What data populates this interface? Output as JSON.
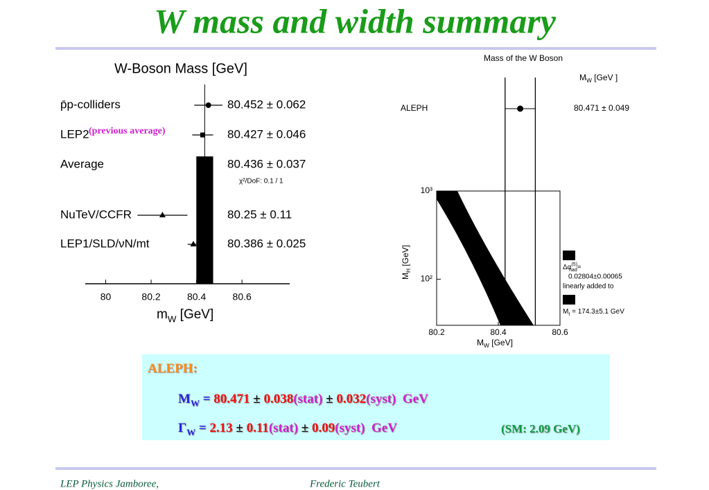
{
  "title": "W mass  and width summary",
  "chart_data": [
    {
      "type": "errorbar",
      "title": "W-Boson Mass  [GeV]",
      "xlabel": {
        "symbol": "m",
        "sub": "W",
        "unit": " [GeV]"
      },
      "categories": [
        "p̄p-colliders",
        "LEP2",
        "Average",
        "NuTeV/CCFR",
        "LEP1/SLD/νN/mt"
      ],
      "values": [
        80.452,
        80.427,
        80.436,
        80.25,
        80.386
      ],
      "errors": [
        0.062,
        0.046,
        0.037,
        0.11,
        0.025
      ],
      "value_labels": [
        "80.452 ± 0.062",
        "80.427 ± 0.046",
        "80.436 ± 0.037",
        "80.25 ± 0.11",
        "80.386 ± 0.025"
      ],
      "markers": [
        "circle",
        "square",
        "band",
        "triangle",
        "triangle"
      ],
      "annotations": [
        "(previous average)",
        "χ²/DoF: 0.1 / 1"
      ],
      "xlim": [
        79.91,
        80.81
      ],
      "xticks": [
        80,
        80.2,
        80.4,
        80.6
      ],
      "color": "#000000"
    },
    {
      "type": "errorbar",
      "title": "Mass of the W Boson",
      "header": {
        "symbol": "M",
        "sub": "W",
        "unit": "  [GeV ]"
      },
      "categories": [
        "ALEPH"
      ],
      "values": [
        80.471
      ],
      "errors": [
        0.049
      ],
      "value_labels": [
        "80.471  ± 0.049"
      ],
      "xlabel": {
        "symbol": "M",
        "sub": "W",
        "unit": "  [GeV]"
      },
      "ylabel": {
        "symbol": "M",
        "sub": "H",
        "unit": "  [GeV]"
      },
      "xlim": [
        80.2,
        80.6
      ],
      "xticks": [
        80.2,
        80.4,
        80.6
      ],
      "ylim": [
        30,
        1000
      ],
      "log_y": true,
      "yticks": [
        {
          "value": 1000,
          "label": "10³"
        },
        {
          "value": 100,
          "label": "10²"
        }
      ],
      "legend": [
        {
          "symbol": "Δα",
          "sup": "(5)",
          "sub": "had",
          "rest": "=",
          "lines": [
            "0.02804±0.00065",
            "linearly added to"
          ]
        },
        {
          "symbol": "M",
          "sub": "t",
          "rest": " = 174.3±5.1 GeV",
          "lines": []
        }
      ],
      "color": "#000000"
    }
  ],
  "box": {
    "heading": "ALEPH:",
    "lines": [
      [
        {
          "text": "M",
          "color": "#2222dd"
        },
        {
          "text": "W",
          "color": "#2222dd",
          "sub": true
        },
        {
          "text": " = ",
          "color": "#2222dd"
        },
        {
          "text": "80.471",
          "color": "#ee1111"
        },
        {
          "text": " ± ",
          "color": "#111111"
        },
        {
          "text": "0.038",
          "color": "#ee1111"
        },
        {
          "text": "(stat)",
          "color": "#cc22cc"
        },
        {
          "text": " ± ",
          "color": "#111111"
        },
        {
          "text": "0.032",
          "color": "#ee1111"
        },
        {
          "text": "(syst)",
          "color": "#cc22cc"
        },
        {
          "text": "  GeV",
          "color": "#cc22cc"
        }
      ],
      [
        {
          "text": "Γ",
          "color": "#2222dd"
        },
        {
          "text": "W",
          "color": "#2222dd",
          "sub": true
        },
        {
          "text": " = ",
          "color": "#2222dd"
        },
        {
          "text": "2.13",
          "color": "#ee1111"
        },
        {
          "text": " ± ",
          "color": "#111111"
        },
        {
          "text": "0.11",
          "color": "#ee1111"
        },
        {
          "text": "(stat)",
          "color": "#cc22cc"
        },
        {
          "text": " ± ",
          "color": "#111111"
        },
        {
          "text": "0.09",
          "color": "#ee1111"
        },
        {
          "text": "(syst)",
          "color": "#cc22cc"
        },
        {
          "text": "  GeV",
          "color": "#cc22cc"
        }
      ]
    ],
    "note": "(SM: 2.09 GeV)"
  },
  "footer": {
    "left": "LEP Physics Jamboree,",
    "center": "Frederic Teubert"
  }
}
